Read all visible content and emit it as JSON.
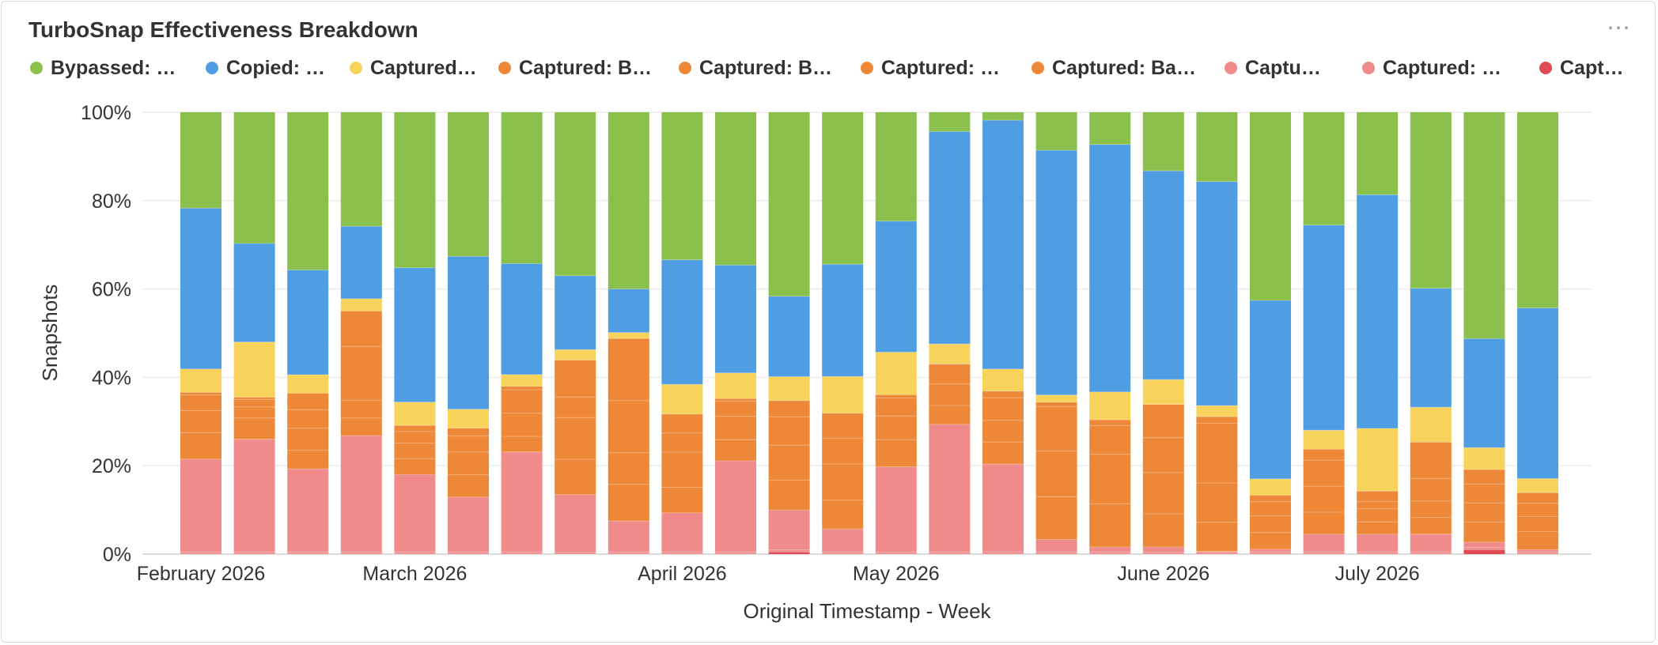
{
  "title": "TurboSnap Effectiveness Breakdown",
  "menu_icon": "more-horizontal-icon",
  "legend": [
    {
      "label": "Bypassed: …",
      "color": "#8bc04d"
    },
    {
      "label": "Copied: …",
      "color": "#4f9de3"
    },
    {
      "label": "Captured…",
      "color": "#f7d35c"
    },
    {
      "label": "Captured: B…",
      "color": "#ed8838"
    },
    {
      "label": "Captured: B…",
      "color": "#ed8838"
    },
    {
      "label": "Captured: …",
      "color": "#ed8838"
    },
    {
      "label": "Captured: Ba…",
      "color": "#ed8838"
    },
    {
      "label": "Captu…",
      "color": "#f08b8b"
    },
    {
      "label": "Captured: …",
      "color": "#f08b8b"
    },
    {
      "label": "Captur…",
      "color": "#e04a52"
    }
  ],
  "chart_data": {
    "type": "bar",
    "stacked": true,
    "normalized": true,
    "xlabel": "Original Timestamp - Week",
    "ylabel": "Snapshots",
    "ylim": [
      0,
      100
    ],
    "yticks": [
      "0%",
      "20%",
      "40%",
      "60%",
      "80%",
      "100%"
    ],
    "x_tick_labels": [
      {
        "label": "February 2026",
        "bar_index": 0
      },
      {
        "label": "March 2026",
        "bar_index": 4
      },
      {
        "label": "April 2026",
        "bar_index": 9
      },
      {
        "label": "May 2026",
        "bar_index": 13
      },
      {
        "label": "June 2026",
        "bar_index": 18
      },
      {
        "label": "July 2026",
        "bar_index": 22
      }
    ],
    "bar_count": 26,
    "series": [
      {
        "name": "Captur…",
        "color": "#e04a52",
        "values": [
          0,
          0,
          0,
          0,
          0,
          0,
          0,
          0,
          0,
          0,
          0,
          0.5,
          0,
          0,
          0,
          0,
          0,
          0,
          0,
          0,
          0,
          0,
          0,
          0,
          1,
          0
        ]
      },
      {
        "name": "Captured: …",
        "color": "#f08b8b",
        "values": [
          0.5,
          0.5,
          0.5,
          0.5,
          0.5,
          0.5,
          0.5,
          0.5,
          0.5,
          0.5,
          0.5,
          0.5,
          0.5,
          0.5,
          0.5,
          0.5,
          0.5,
          0.5,
          0.5,
          0.5,
          0.5,
          0.5,
          0.5,
          0.5,
          0.5,
          0.5
        ]
      },
      {
        "name": "Captu…",
        "color": "#f08b8b",
        "values": [
          21,
          25.5,
          18.8,
          26.3,
          17.6,
          12.4,
          23.8,
          14.3,
          7.3,
          8.8,
          20.6,
          9.6,
          5.2,
          20.4,
          29,
          19.8,
          2.8,
          1.1,
          1.2,
          0.1,
          0.6,
          4,
          4,
          4,
          1.2,
          0.5
        ]
      },
      {
        "name": "Captured: Ba…",
        "color": "#ed8838",
        "values": [
          6,
          4.8,
          4.2,
          4,
          3.6,
          5.1,
          3.7,
          8.8,
          8.7,
          5.8,
          4.8,
          7.2,
          6.5,
          6.5,
          4.3,
          5,
          9.7,
          9.8,
          8,
          6.6,
          3.8,
          5,
          2.8,
          3.8,
          4.6,
          4.1
        ]
      },
      {
        "name": "Captured: …",
        "color": "#ed8838",
        "values": [
          5,
          2.5,
          5,
          4,
          3.6,
          5.1,
          5.5,
          10.4,
          7.5,
          7.9,
          5.3,
          8.5,
          8.2,
          5.7,
          4.9,
          4.9,
          10.3,
          11.2,
          9.9,
          8.9,
          3.8,
          5.9,
          3,
          3.7,
          4.4,
          3.4
        ]
      },
      {
        "name": "Captured: B…",
        "color": "#ed8838",
        "values": [
          3.5,
          1.7,
          4.2,
          12.2,
          2.6,
          3.6,
          5.6,
          5.1,
          12.3,
          4.3,
          3.4,
          6.8,
          5.8,
          4.3,
          4.5,
          5.1,
          10.1,
          6.5,
          8.4,
          13.5,
          3.2,
          5.9,
          1.6,
          5.1,
          4.3,
          3
        ]
      },
      {
        "name": "Captured: B…",
        "color": "#ed8838",
        "values": [
          0.6,
          0.5,
          3.7,
          8,
          1.4,
          1.8,
          0.8,
          9.2,
          14.7,
          4.3,
          0.6,
          3.9,
          5.7,
          0.8,
          0.1,
          1.5,
          1,
          1.3,
          8,
          1.5,
          1.5,
          2.5,
          2.4,
          8.2,
          3.3,
          2.4
        ]
      },
      {
        "name": "Captured…",
        "color": "#f7d35c",
        "values": [
          5.3,
          12.5,
          4.2,
          2.8,
          5.3,
          4.3,
          2.8,
          2.6,
          1.4,
          6.7,
          5.8,
          5.8,
          8.3,
          10.2,
          4.5,
          5,
          1.6,
          6.3,
          6,
          2.5,
          3.7,
          4.3,
          14.2,
          7.9,
          5,
          3.2
        ]
      },
      {
        "name": "Copied: …",
        "color": "#4f9de3",
        "values": [
          36.4,
          22.3,
          23.7,
          16.4,
          30.6,
          34.6,
          26.4,
          18.4,
          10.3,
          28.1,
          24.4,
          19.4,
          25.4,
          31.4,
          48.3,
          56.2,
          55.4,
          56,
          50.2,
          50.7,
          40.6,
          46.5,
          53,
          26.9,
          24.9,
          38.6
        ]
      },
      {
        "name": "Bypassed: …",
        "color": "#8bc04d",
        "values": [
          21.7,
          29.7,
          35.7,
          25.8,
          35.4,
          32.6,
          36,
          40.7,
          41.8,
          33.3,
          34.6,
          44.4,
          34.4,
          26.1,
          4.4,
          1.8,
          8.6,
          7.3,
          14.1,
          15.7,
          42.8,
          25.6,
          18.7,
          39.8,
          51.7,
          44.3
        ]
      }
    ]
  }
}
